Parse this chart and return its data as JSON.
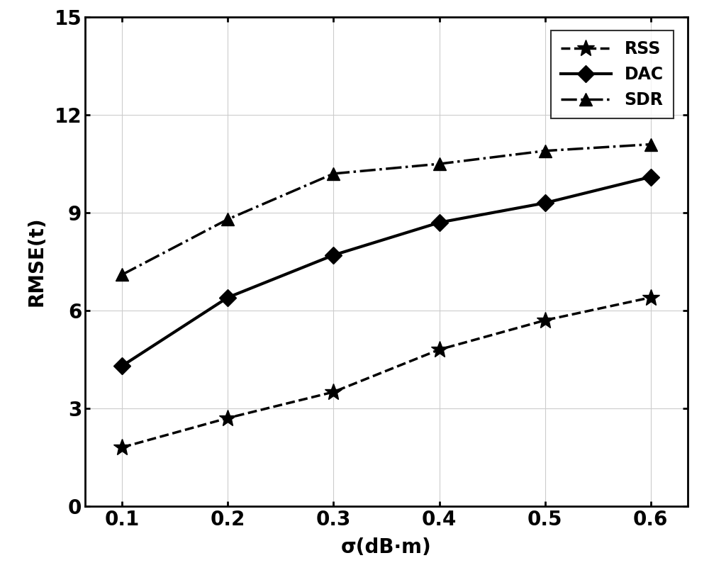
{
  "x": [
    0.1,
    0.2,
    0.3,
    0.4,
    0.5,
    0.6
  ],
  "RSS": [
    1.8,
    2.7,
    3.5,
    4.8,
    5.7,
    6.4
  ],
  "DAC": [
    4.3,
    6.4,
    7.7,
    8.7,
    9.3,
    10.1
  ],
  "SDR": [
    7.1,
    8.8,
    10.2,
    10.5,
    10.9,
    11.1
  ],
  "xlabel": "σ(dB·m)",
  "ylabel": "RMSE(t)",
  "ylim": [
    0,
    15
  ],
  "yticks": [
    0,
    3,
    6,
    9,
    12,
    15
  ],
  "xticks": [
    0.1,
    0.2,
    0.3,
    0.4,
    0.5,
    0.6
  ],
  "legend_labels": [
    "RSS",
    "DAC",
    "SDR"
  ],
  "line_color": "#000000",
  "bg_color": "#ffffff",
  "grid_color": "#cccccc",
  "label_fontsize": 20,
  "tick_fontsize": 20,
  "legend_fontsize": 17,
  "rss_marker_size": 18,
  "dac_marker_size": 12,
  "sdr_marker_size": 13,
  "line_width": 2.5
}
